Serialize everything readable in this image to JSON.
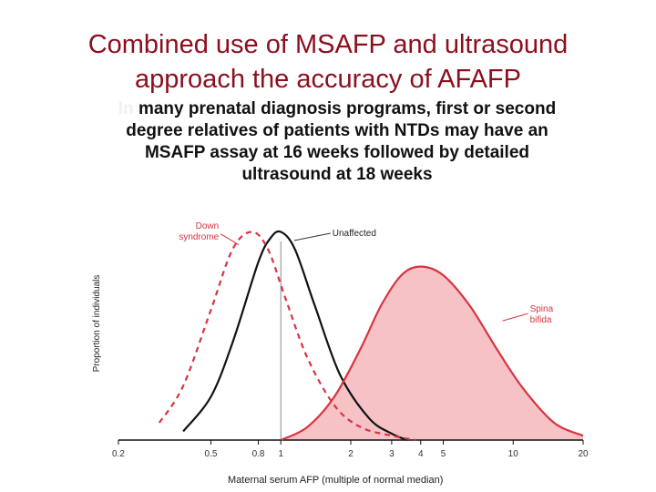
{
  "slide": {
    "title_line1": "Combined use of MSAFP and ultrasound",
    "title_line2": "approach the accuracy of AFAFP",
    "body_lead": "In",
    "body_line1": " many prenatal diagnosis programs, first or second",
    "body_line2": "degree relatives of patients with NTDs may have an",
    "body_line3": "MSAFP assay at 16 weeks followed by detailed",
    "body_line4": "ultrasound at 18 weeks"
  },
  "chart_data": {
    "type": "line",
    "xlabel": "Maternal serum AFP (multiple of normal median)",
    "ylabel": "Proportion of individuals",
    "x_scale": "log",
    "xlim": [
      0.2,
      20
    ],
    "ylim": [
      0,
      1
    ],
    "x_ticks": [
      0.2,
      0.5,
      0.8,
      1,
      2,
      3,
      4,
      5,
      10,
      20
    ],
    "x_tick_labels": [
      "0.2",
      "0.5",
      "0.8",
      "1",
      "2",
      "3",
      "4",
      "5",
      "10",
      "20"
    ],
    "reference_line_x": 1,
    "series": [
      {
        "name": "Unaffected",
        "style": "solid",
        "color": "#111111",
        "fill": "none",
        "x": [
          0.38,
          0.5,
          0.62,
          0.8,
          0.9,
          1.0,
          1.15,
          1.4,
          1.8,
          2.4,
          3.0,
          3.5
        ],
        "y": [
          0.04,
          0.2,
          0.45,
          0.82,
          0.93,
          0.96,
          0.88,
          0.62,
          0.3,
          0.1,
          0.03,
          0.0
        ]
      },
      {
        "name": "Down syndrome",
        "style": "dashed",
        "color": "#d8343f",
        "fill": "none",
        "x": [
          0.3,
          0.38,
          0.5,
          0.62,
          0.75,
          0.88,
          1.05,
          1.3,
          1.7,
          2.2,
          3.0,
          3.8
        ],
        "y": [
          0.08,
          0.25,
          0.6,
          0.88,
          0.96,
          0.88,
          0.65,
          0.38,
          0.16,
          0.06,
          0.02,
          0.0
        ]
      },
      {
        "name": "Spina bifida",
        "style": "solid",
        "color": "#d8343f",
        "fill": "#f6c2c5",
        "x": [
          1.0,
          1.3,
          1.7,
          2.2,
          2.7,
          3.3,
          4.0,
          5.0,
          6.5,
          8.5,
          11,
          15,
          20
        ],
        "y": [
          0.0,
          0.06,
          0.2,
          0.42,
          0.62,
          0.76,
          0.8,
          0.76,
          0.62,
          0.42,
          0.24,
          0.08,
          0.02
        ]
      }
    ],
    "annotations": [
      {
        "label": "Unaffected",
        "series": "Unaffected"
      },
      {
        "label_lines": [
          "Down",
          "syndrome"
        ],
        "series": "Down syndrome"
      },
      {
        "label_lines": [
          "Spina",
          "bifida"
        ],
        "series": "Spina bifida"
      }
    ],
    "colors": {
      "accent": "#d8343f",
      "fill": "#f6c2c5",
      "text": "#111111",
      "title": "#8b0f1e"
    }
  }
}
